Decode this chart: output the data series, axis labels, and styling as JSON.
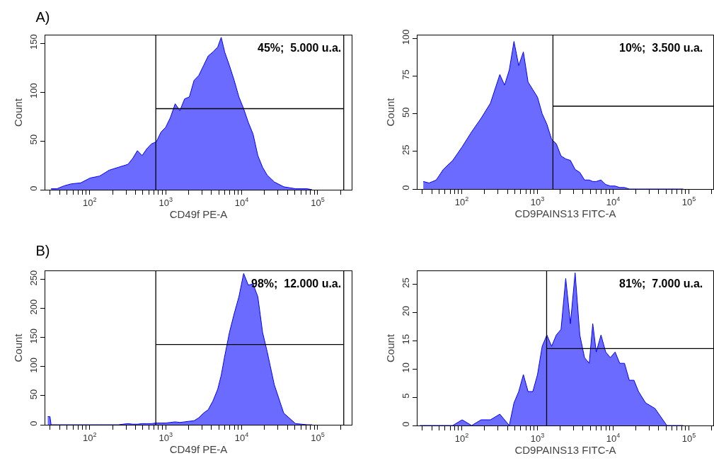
{
  "chart_data": [
    {
      "type": "area",
      "title": "A)",
      "xlabel": "CD49f PE-A",
      "ylabel": "Count",
      "log": "x",
      "x": [
        31,
        37,
        46,
        57,
        76,
        101,
        135,
        180,
        239,
        318,
        367,
        424,
        489,
        565,
        651,
        751,
        867,
        1000,
        1153,
        1331,
        1536,
        1772,
        2045,
        2360,
        2722,
        3141,
        3624,
        4182,
        4825,
        5370,
        5970,
        6900,
        7960,
        9180,
        10600,
        12200,
        14100,
        16300,
        18800,
        21600,
        26800,
        35700,
        51100,
        73000,
        84200
      ],
      "series": [
        {
          "color": "#0000ff",
          "values": [
            1,
            1,
            4,
            6,
            7,
            12,
            14,
            20,
            23,
            26,
            32,
            40,
            35,
            42,
            47,
            49,
            59,
            64,
            74,
            88,
            81,
            93,
            95,
            112,
            117,
            127,
            137,
            141,
            146,
            156,
            141,
            127,
            112,
            95,
            83,
            69,
            57,
            35,
            23,
            15,
            8,
            3,
            1,
            1,
            0
          ]
        }
      ],
      "xlim": [
        26,
        280000
      ],
      "ylim": [
        0,
        158
      ],
      "xticks": [
        {
          "value": 30,
          "label": null
        },
        {
          "value": 40,
          "label": null
        },
        {
          "value": 50,
          "label": null
        },
        {
          "value": 60,
          "label": null
        },
        {
          "value": 70,
          "label": null
        },
        {
          "value": 80,
          "label": null
        },
        {
          "value": 90,
          "label": null
        },
        {
          "value": 100,
          "label": "10$^{2}$"
        },
        {
          "value": 200,
          "label": null
        },
        {
          "value": 300,
          "label": null
        },
        {
          "value": 400,
          "label": null
        },
        {
          "value": 500,
          "label": null
        },
        {
          "value": 600,
          "label": null
        },
        {
          "value": 700,
          "label": null
        },
        {
          "value": 800,
          "label": null
        },
        {
          "value": 900,
          "label": null
        },
        {
          "value": 1000,
          "label": "10$^{3}$"
        },
        {
          "value": 2000,
          "label": null
        },
        {
          "value": 3000,
          "label": null
        },
        {
          "value": 4000,
          "label": null
        },
        {
          "value": 5000,
          "label": null
        },
        {
          "value": 6000,
          "label": null
        },
        {
          "value": 7000,
          "label": null
        },
        {
          "value": 8000,
          "label": null
        },
        {
          "value": 9000,
          "label": null
        },
        {
          "value": 10000,
          "label": "10$^{4}$"
        },
        {
          "value": 20000,
          "label": null
        },
        {
          "value": 30000,
          "label": null
        },
        {
          "value": 40000,
          "label": null
        },
        {
          "value": 50000,
          "label": null
        },
        {
          "value": 60000,
          "label": null
        },
        {
          "value": 70000,
          "label": null
        },
        {
          "value": 80000,
          "label": null
        },
        {
          "value": 90000,
          "label": null
        },
        {
          "value": 100000,
          "label": "10$^{5}$"
        },
        {
          "value": 200000,
          "label": null
        }
      ],
      "yticks": [
        0,
        50,
        100,
        150
      ],
      "ref_lines": [
        {
          "axis": "x",
          "value": 740,
          "color": "#000000"
        },
        {
          "axis": "x",
          "value": 220000,
          "color": "#000000"
        },
        {
          "axis": "y",
          "value": 83,
          "color": "#000000"
        }
      ],
      "annotations": [
        "45%;  5.000 u.a."
      ]
    },
    {
      "type": "area",
      "xlabel": "CD9PAINS13 FITC-A",
      "ylabel": "Count",
      "x": [
        31,
        37,
        46,
        57,
        76,
        101,
        135,
        180,
        239,
        318,
        367,
        424,
        489,
        565,
        651,
        751,
        867,
        1000,
        1153,
        1331,
        1536,
        1772,
        2045,
        2360,
        2722,
        3141,
        3624,
        4182,
        4825,
        5370,
        5970,
        6900,
        7960,
        9180,
        10600,
        12200,
        14100,
        16300,
        18800,
        21600,
        26800,
        35700,
        51100,
        73000,
        84200
      ],
      "log": "x",
      "series": [
        {
          "color": "#0000ff",
          "values": [
            5,
            4,
            6,
            13,
            19,
            28,
            38,
            47,
            57,
            76,
            69,
            79,
            98,
            82,
            91,
            71,
            66,
            61,
            50,
            43,
            33,
            30,
            22,
            20,
            19,
            13,
            11,
            6,
            6,
            5,
            5,
            6,
            3,
            2,
            2,
            1,
            1,
            0,
            0,
            0,
            0,
            0,
            0,
            0,
            0
          ]
        }
      ],
      "xlim": [
        26,
        210000
      ],
      "ylim": [
        0,
        102
      ],
      "xticks": [
        {
          "value": 30,
          "label": null
        },
        {
          "value": 40,
          "label": null
        },
        {
          "value": 50,
          "label": null
        },
        {
          "value": 60,
          "label": null
        },
        {
          "value": 70,
          "label": null
        },
        {
          "value": 80,
          "label": null
        },
        {
          "value": 90,
          "label": null
        },
        {
          "value": 100,
          "label": "10$^{2}$"
        },
        {
          "value": 200,
          "label": null
        },
        {
          "value": 300,
          "label": null
        },
        {
          "value": 400,
          "label": null
        },
        {
          "value": 500,
          "label": null
        },
        {
          "value": 600,
          "label": null
        },
        {
          "value": 700,
          "label": null
        },
        {
          "value": 800,
          "label": null
        },
        {
          "value": 900,
          "label": null
        },
        {
          "value": 1000,
          "label": "10$^{3}$"
        },
        {
          "value": 2000,
          "label": null
        },
        {
          "value": 3000,
          "label": null
        },
        {
          "value": 4000,
          "label": null
        },
        {
          "value": 5000,
          "label": null
        },
        {
          "value": 6000,
          "label": null
        },
        {
          "value": 7000,
          "label": null
        },
        {
          "value": 8000,
          "label": null
        },
        {
          "value": 9000,
          "label": null
        },
        {
          "value": 10000,
          "label": "10$^{4}$"
        },
        {
          "value": 20000,
          "label": null
        },
        {
          "value": 30000,
          "label": null
        },
        {
          "value": 40000,
          "label": null
        },
        {
          "value": 50000,
          "label": null
        },
        {
          "value": 60000,
          "label": null
        },
        {
          "value": 70000,
          "label": null
        },
        {
          "value": 80000,
          "label": null
        },
        {
          "value": 90000,
          "label": null
        },
        {
          "value": 100000,
          "label": "10$^{5}$"
        },
        {
          "value": 200000,
          "label": null
        }
      ],
      "yticks": [
        0,
        25,
        50,
        75,
        100
      ],
      "ref_lines": [
        {
          "axis": "x",
          "value": 1600,
          "color": "#000000"
        },
        {
          "axis": "y",
          "value": 55,
          "color": "#000000"
        }
      ],
      "annotations": [
        "10%;  3.500 u.a."
      ]
    },
    {
      "type": "area",
      "title": "B)",
      "xlabel": "CD49f PE-A",
      "ylabel": "Count",
      "log": "x",
      "x": [
        28,
        30,
        31,
        37,
        46,
        57,
        76,
        101,
        135,
        180,
        239,
        318,
        367,
        424,
        489,
        565,
        651,
        751,
        867,
        1000,
        1153,
        1331,
        1536,
        1772,
        2045,
        2360,
        2722,
        3141,
        3624,
        4182,
        4825,
        5370,
        5970,
        6900,
        7960,
        9180,
        10600,
        12200,
        14100,
        16300,
        18800,
        21600,
        26800,
        35700,
        51100,
        73000,
        84200
      ],
      "series": [
        {
          "color": "#0000ff",
          "values": [
            14,
            14,
            0,
            0,
            0,
            0,
            0,
            0,
            0,
            0,
            0,
            2,
            1,
            1,
            2,
            2,
            2,
            3,
            3,
            3,
            4,
            5,
            4,
            5,
            6,
            7,
            12,
            20,
            26,
            41,
            61,
            85,
            118,
            159,
            191,
            220,
            260,
            240,
            242,
            220,
            159,
            126,
            69,
            20,
            2,
            0,
            0
          ]
        }
      ],
      "xlim": [
        26,
        280000
      ],
      "ylim": [
        0,
        264
      ],
      "xticks": [
        {
          "value": 30,
          "label": null
        },
        {
          "value": 40,
          "label": null
        },
        {
          "value": 50,
          "label": null
        },
        {
          "value": 60,
          "label": null
        },
        {
          "value": 70,
          "label": null
        },
        {
          "value": 80,
          "label": null
        },
        {
          "value": 90,
          "label": null
        },
        {
          "value": 100,
          "label": "10$^{2}$"
        },
        {
          "value": 200,
          "label": null
        },
        {
          "value": 300,
          "label": null
        },
        {
          "value": 400,
          "label": null
        },
        {
          "value": 500,
          "label": null
        },
        {
          "value": 600,
          "label": null
        },
        {
          "value": 700,
          "label": null
        },
        {
          "value": 800,
          "label": null
        },
        {
          "value": 900,
          "label": null
        },
        {
          "value": 1000,
          "label": "10$^{3}$"
        },
        {
          "value": 2000,
          "label": null
        },
        {
          "value": 3000,
          "label": null
        },
        {
          "value": 4000,
          "label": null
        },
        {
          "value": 5000,
          "label": null
        },
        {
          "value": 6000,
          "label": null
        },
        {
          "value": 7000,
          "label": null
        },
        {
          "value": 8000,
          "label": null
        },
        {
          "value": 9000,
          "label": null
        },
        {
          "value": 10000,
          "label": "10$^{4}$"
        },
        {
          "value": 20000,
          "label": null
        },
        {
          "value": 30000,
          "label": null
        },
        {
          "value": 40000,
          "label": null
        },
        {
          "value": 50000,
          "label": null
        },
        {
          "value": 60000,
          "label": null
        },
        {
          "value": 70000,
          "label": null
        },
        {
          "value": 80000,
          "label": null
        },
        {
          "value": 90000,
          "label": null
        },
        {
          "value": 100000,
          "label": "10$^{5}$"
        },
        {
          "value": 200000,
          "label": null
        }
      ],
      "yticks": [
        0,
        50,
        100,
        150,
        200,
        250
      ],
      "ref_lines": [
        {
          "axis": "x",
          "value": 740,
          "color": "#000000"
        },
        {
          "axis": "x",
          "value": 220000,
          "color": "#000000"
        },
        {
          "axis": "y",
          "value": 138,
          "color": "#000000"
        }
      ],
      "annotations": [
        "98%;  12.000 u.a."
      ]
    },
    {
      "type": "area",
      "xlabel": "CD9PAINS13 FITC-A",
      "ylabel": "Count",
      "x": [
        28,
        30,
        31,
        37,
        46,
        57,
        76,
        101,
        135,
        180,
        239,
        318,
        367,
        424,
        489,
        565,
        651,
        751,
        867,
        1000,
        1153,
        1331,
        1536,
        1772,
        2045,
        2360,
        2722,
        3141,
        3624,
        4182,
        4825,
        5370,
        5970,
        6900,
        7960,
        9180,
        10600,
        12200,
        14100,
        16300,
        18800,
        21600,
        26800,
        35700,
        51100,
        73000,
        84200
      ],
      "log": "x",
      "series": [
        {
          "color": "#0000ff",
          "values": [
            0,
            0,
            0,
            0,
            0,
            0,
            0,
            1,
            0,
            1,
            1,
            2,
            1,
            0,
            4,
            6,
            9,
            6,
            6,
            9,
            14,
            16,
            14,
            16,
            17,
            26,
            18,
            27,
            16,
            12,
            11,
            18,
            13,
            16,
            13,
            12,
            13,
            11,
            11,
            8,
            8,
            6,
            4,
            3,
            0,
            0,
            0
          ]
        }
      ],
      "xlim": [
        26,
        210000
      ],
      "ylim": [
        0,
        27.3
      ],
      "xticks": [
        {
          "value": 30,
          "label": null
        },
        {
          "value": 40,
          "label": null
        },
        {
          "value": 50,
          "label": null
        },
        {
          "value": 60,
          "label": null
        },
        {
          "value": 70,
          "label": null
        },
        {
          "value": 80,
          "label": null
        },
        {
          "value": 90,
          "label": null
        },
        {
          "value": 100,
          "label": "10$^{2}$"
        },
        {
          "value": 200,
          "label": null
        },
        {
          "value": 300,
          "label": null
        },
        {
          "value": 400,
          "label": null
        },
        {
          "value": 500,
          "label": null
        },
        {
          "value": 600,
          "label": null
        },
        {
          "value": 700,
          "label": null
        },
        {
          "value": 800,
          "label": null
        },
        {
          "value": 900,
          "label": null
        },
        {
          "value": 1000,
          "label": "10$^{3}$"
        },
        {
          "value": 2000,
          "label": null
        },
        {
          "value": 3000,
          "label": null
        },
        {
          "value": 4000,
          "label": null
        },
        {
          "value": 5000,
          "label": null
        },
        {
          "value": 6000,
          "label": null
        },
        {
          "value": 7000,
          "label": null
        },
        {
          "value": 8000,
          "label": null
        },
        {
          "value": 9000,
          "label": null
        },
        {
          "value": 10000,
          "label": "10$^{4}$"
        },
        {
          "value": 20000,
          "label": null
        },
        {
          "value": 30000,
          "label": null
        },
        {
          "value": 40000,
          "label": null
        },
        {
          "value": 50000,
          "label": null
        },
        {
          "value": 60000,
          "label": null
        },
        {
          "value": 70000,
          "label": null
        },
        {
          "value": 80000,
          "label": null
        },
        {
          "value": 90000,
          "label": null
        },
        {
          "value": 100000,
          "label": "10$^{5}$"
        },
        {
          "value": 200000,
          "label": null
        }
      ],
      "yticks": [
        0,
        5,
        10,
        15,
        20,
        25
      ],
      "ref_lines": [
        {
          "axis": "x",
          "value": 1320,
          "color": "#000000"
        },
        {
          "axis": "y",
          "value": 13.6,
          "color": "#000000"
        }
      ],
      "annotations": [
        "81%;  7.000 u.a."
      ]
    }
  ]
}
